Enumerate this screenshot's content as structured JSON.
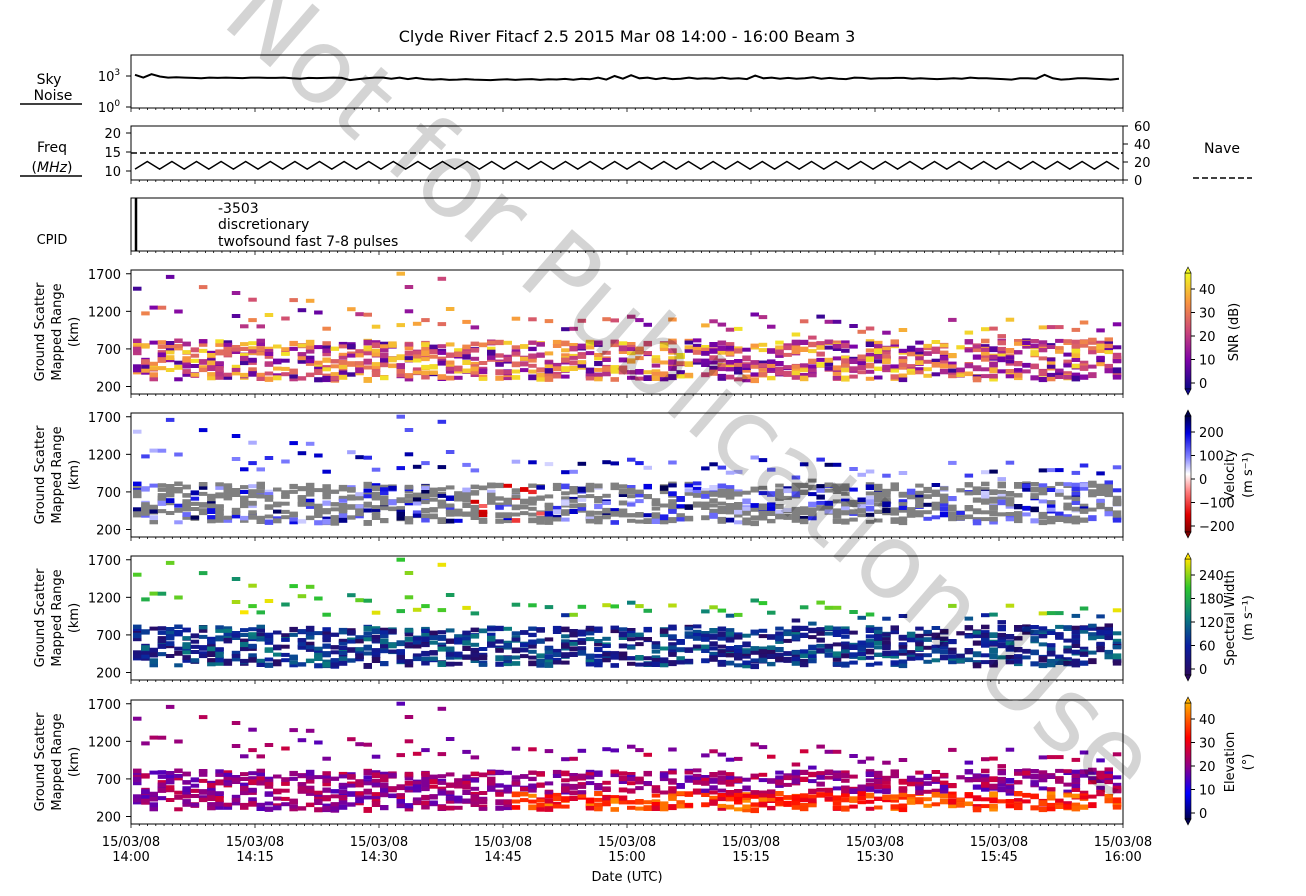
{
  "title": "Clyde River Fitacf 2.5 2015 Mar 08 14:00 - 16:00  Beam 3",
  "watermark": "Not for Publication Use",
  "xlabel": "Date (UTC)",
  "x_ticks": [
    {
      "date": "15/03/08",
      "time": "14:00"
    },
    {
      "date": "15/03/08",
      "time": "14:15"
    },
    {
      "date": "15/03/08",
      "time": "14:30"
    },
    {
      "date": "15/03/08",
      "time": "14:45"
    },
    {
      "date": "15/03/08",
      "time": "15:00"
    },
    {
      "date": "15/03/08",
      "time": "15:15"
    },
    {
      "date": "15/03/08",
      "time": "15:30"
    },
    {
      "date": "15/03/08",
      "time": "15:45"
    },
    {
      "date": "15/03/08",
      "time": "16:00"
    }
  ],
  "noise_panel": {
    "label_line1": "Sky",
    "label_line2": "Noise",
    "ticks": [
      "10",
      "10"
    ],
    "tick_exponents": [
      "0",
      "3"
    ]
  },
  "freq_panel": {
    "label_line1": "Freq",
    "label_line2": "(MHz)",
    "left_ticks": [
      "20",
      "15",
      "10"
    ],
    "right_ticks": [
      "60",
      "40",
      "20",
      "0"
    ],
    "nave_label": "Nave"
  },
  "cpid_panel": {
    "label": "CPID",
    "line1": "-3503",
    "line2": "discretionary",
    "line3": "twofsound fast 7-8 pulses"
  },
  "range_panels": [
    {
      "ylabel_line1": "Ground Scatter",
      "ylabel_line2": "Mapped Range",
      "ylabel_line3": "(km)",
      "cbar_label": "SNR (dB)",
      "cbar_ticks": [
        "40",
        "30",
        "20",
        "10",
        "0"
      ],
      "colormap": "plasma"
    },
    {
      "ylabel_line1": "Ground Scatter",
      "ylabel_line2": "Mapped Range",
      "ylabel_line3": "(km)",
      "cbar_label": "Velocity",
      "cbar_unit": "(m s⁻¹)",
      "cbar_ticks": [
        "200",
        "100",
        "0",
        "−100",
        "−200"
      ],
      "colormap": "seismic_r"
    },
    {
      "ylabel_line1": "Ground Scatter",
      "ylabel_line2": "Mapped Range",
      "ylabel_line3": "(km)",
      "cbar_label": "Spectral Width",
      "cbar_unit": "(m s⁻¹)",
      "cbar_ticks": [
        "240",
        "180",
        "120",
        "60",
        "0"
      ],
      "colormap": "viridis-like"
    },
    {
      "ylabel_line1": "Ground Scatter",
      "ylabel_line2": "Mapped Range",
      "ylabel_line3": "(km)",
      "cbar_label": "Elevation",
      "cbar_unit": "(°)",
      "cbar_ticks": [
        "40",
        "30",
        "20",
        "10",
        "0"
      ],
      "colormap": "elevation"
    }
  ],
  "range_ticks": [
    "1700",
    "1200",
    "700",
    "200"
  ],
  "chart_data": [
    {
      "type": "line",
      "name": "Sky Noise",
      "x_range": [
        "14:00",
        "16:00"
      ],
      "log_scale": true,
      "ylim": [
        1,
        100000
      ],
      "series": [
        {
          "values": [
            1300,
            700,
            1500,
            900,
            700,
            750,
            700,
            650,
            600,
            700,
            650,
            700,
            650,
            620,
            700,
            700,
            650,
            650,
            700,
            600,
            550,
            650,
            620,
            650,
            700,
            650,
            400,
            500,
            600,
            700,
            700,
            550,
            700,
            500,
            650,
            500,
            450,
            500,
            420,
            450,
            500,
            450,
            420,
            400,
            450,
            480,
            420,
            470,
            500,
            420,
            480,
            460,
            520,
            430,
            550,
            480,
            700,
            450,
            1000,
            550,
            1200,
            600,
            700,
            500,
            650,
            500,
            550,
            700,
            550,
            600,
            550,
            700,
            550,
            600,
            500,
            1100,
            600,
            700,
            550,
            650,
            550,
            600,
            750,
            550,
            650,
            550,
            500,
            700,
            650,
            550,
            600,
            600,
            650,
            650,
            550,
            600,
            550,
            500,
            550,
            600,
            550,
            700,
            600,
            600,
            550,
            500,
            450,
            600,
            600,
            550,
            1300,
            600,
            450,
            500,
            600,
            600,
            550,
            500,
            450,
            550
          ]
        }
      ]
    },
    {
      "type": "line",
      "name": "Frequency",
      "y_unit": "MHz",
      "ylim": [
        8,
        22
      ],
      "series": [
        {
          "name": "Freq",
          "pattern": "alternating",
          "values": [
            10.5,
            12.5
          ]
        },
        {
          "name": "Nave",
          "values": [
            35
          ],
          "axis": "right",
          "ylim": [
            0,
            60
          ]
        }
      ]
    },
    {
      "type": "heatmap",
      "name": "SNR",
      "x_range": [
        "14:00",
        "16:00"
      ],
      "y_range_km": [
        100,
        1750
      ],
      "clim": [
        0,
        45
      ],
      "unit": "dB"
    },
    {
      "type": "heatmap",
      "name": "Velocity",
      "x_range": [
        "14:00",
        "16:00"
      ],
      "y_range_km": [
        100,
        1750
      ],
      "clim": [
        -200,
        200
      ],
      "unit": "m s-1"
    },
    {
      "type": "heatmap",
      "name": "Spectral Width",
      "x_range": [
        "14:00",
        "16:00"
      ],
      "y_range_km": [
        100,
        1750
      ],
      "clim": [
        0,
        250
      ],
      "unit": "m s-1"
    },
    {
      "type": "heatmap",
      "name": "Elevation",
      "x_range": [
        "14:00",
        "16:00"
      ],
      "y_range_km": [
        100,
        1750
      ],
      "clim": [
        0,
        45
      ],
      "unit": "deg"
    }
  ]
}
